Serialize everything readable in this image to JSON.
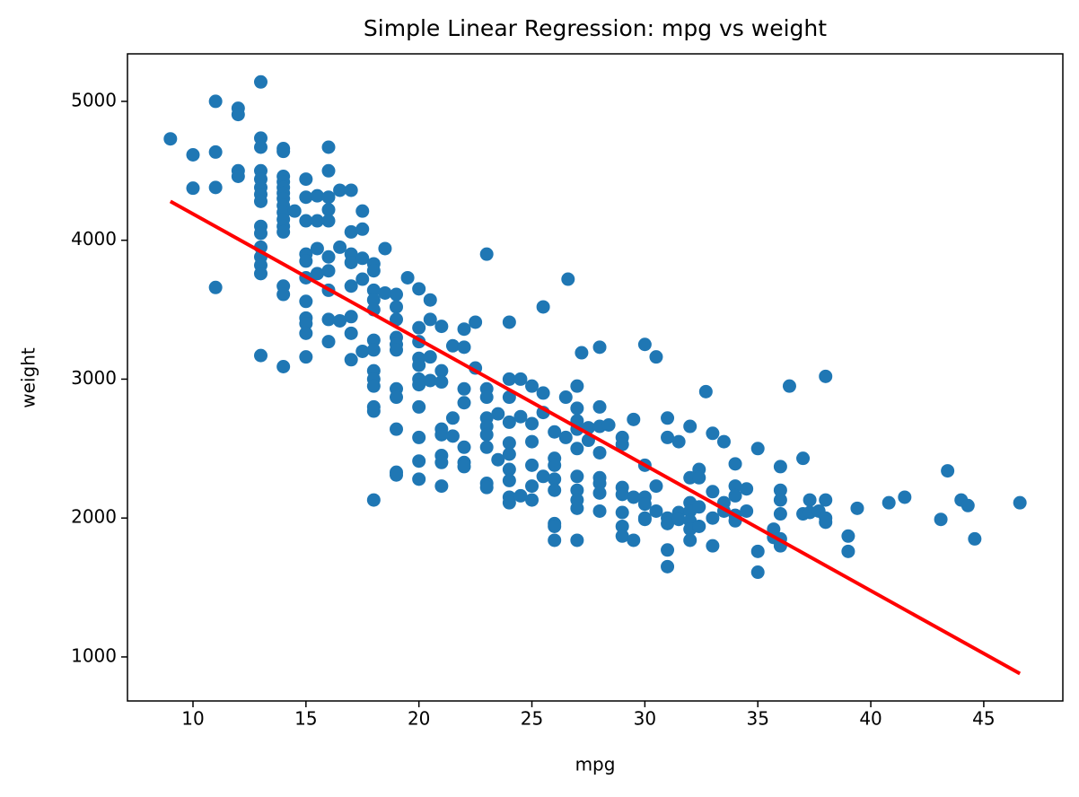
{
  "chart_data": {
    "type": "scatter",
    "title": "Simple Linear Regression: mpg vs weight",
    "x_label": "mpg",
    "y_label": "weight",
    "xlim": [
      7.1,
      48.5
    ],
    "ylim": [
      683,
      5342
    ],
    "xticks": [
      10,
      15,
      20,
      25,
      30,
      35,
      40,
      45
    ],
    "yticks": [
      1000,
      2000,
      3000,
      4000,
      5000
    ],
    "grid": false,
    "series": [
      {
        "type": "scatter",
        "color": "#1f77b4",
        "x": [
          9,
          10,
          10,
          11,
          11,
          11,
          11,
          12,
          12,
          12,
          12,
          13,
          13,
          13,
          13,
          13,
          13,
          13,
          13,
          13,
          13,
          13,
          13,
          13,
          13,
          13,
          14,
          14,
          14,
          14,
          14,
          14,
          14,
          14,
          14,
          14,
          14,
          14,
          14,
          14,
          14,
          14.5,
          15,
          15,
          15,
          15,
          15,
          15,
          15,
          15,
          15,
          15,
          15,
          15.5,
          15.5,
          15.5,
          15.5,
          16,
          16,
          16,
          16,
          16,
          16,
          16,
          16,
          16,
          16,
          16.5,
          16.5,
          16.5,
          17,
          17,
          17,
          17,
          17,
          17,
          17,
          17,
          17.5,
          17.5,
          17.5,
          17.5,
          17.5,
          18,
          18,
          18,
          18,
          18,
          18,
          18,
          18,
          18,
          18,
          18,
          18,
          18,
          18.5,
          18.5,
          19,
          19,
          19,
          19,
          19,
          19,
          19,
          19,
          19,
          19,
          19,
          19.5,
          20,
          20,
          20,
          20,
          20,
          20,
          20,
          20,
          20,
          20,
          20,
          20.5,
          20.5,
          20.5,
          20.5,
          21,
          21,
          21,
          21,
          21,
          21,
          21,
          21,
          21.5,
          21.5,
          21.5,
          22,
          22,
          22,
          22,
          22,
          22,
          22,
          22.5,
          22.5,
          23,
          23,
          23,
          23,
          23,
          23,
          23,
          23,
          23,
          23.5,
          23.5,
          24,
          24,
          24,
          24,
          24,
          24,
          24,
          24,
          24,
          24,
          24.5,
          24.5,
          24.5,
          25,
          25,
          25,
          25,
          25,
          25,
          25.5,
          25.5,
          25.5,
          25.5,
          26,
          26,
          26,
          26,
          26,
          26,
          26,
          26,
          26.5,
          26.5,
          26.6,
          27,
          27,
          27,
          27,
          27,
          27,
          27,
          27,
          27,
          27,
          27.2,
          27.5,
          27.5,
          28,
          28,
          28,
          28,
          28,
          28,
          28,
          28,
          28.4,
          29,
          29,
          29,
          29,
          29,
          29,
          29,
          29.5,
          29.5,
          29.5,
          30,
          30,
          30,
          30,
          30,
          30,
          30.5,
          30.5,
          30.5,
          31,
          31,
          31,
          31,
          31,
          31,
          31.5,
          31.5,
          31.5,
          32,
          32,
          32,
          32,
          32,
          32,
          32,
          32.4,
          32.4,
          32.4,
          32.4,
          32.7,
          33,
          33,
          33,
          33,
          33.5,
          33.5,
          33.5,
          34,
          34,
          34,
          34,
          34,
          34.5,
          34.5,
          35,
          35,
          35,
          35.7,
          35.7,
          36,
          36,
          36,
          36,
          36,
          36,
          36.4,
          37,
          37,
          37.3,
          37.3,
          37.7,
          38,
          38,
          38,
          38,
          39,
          39,
          39.4,
          40.8,
          41.5,
          43.1,
          43.4,
          44,
          44.3,
          44.6,
          46.6
        ],
        "values": [
          4730,
          4615,
          4375,
          5000,
          4635,
          4380,
          3660,
          4950,
          4905,
          4500,
          4460,
          5140,
          4735,
          4670,
          4500,
          4440,
          4380,
          4330,
          4280,
          4100,
          4050,
          3950,
          3880,
          3820,
          3760,
          3170,
          4660,
          4640,
          4460,
          4420,
          4380,
          4340,
          4300,
          4250,
          4200,
          4150,
          4100,
          4060,
          3670,
          3610,
          3090,
          4210,
          4440,
          4310,
          4140,
          3900,
          3850,
          3730,
          3560,
          3440,
          3400,
          3330,
          3160,
          4320,
          4140,
          3940,
          3760,
          4670,
          4500,
          4310,
          4220,
          4140,
          3880,
          3780,
          3640,
          3430,
          3270,
          4360,
          3950,
          3420,
          4360,
          4060,
          3900,
          3840,
          3670,
          3450,
          3330,
          3140,
          4210,
          4080,
          3870,
          3720,
          3200,
          3830,
          3780,
          3640,
          3570,
          3500,
          3280,
          3210,
          3060,
          3000,
          2950,
          2800,
          2770,
          2130,
          3940,
          3620,
          3610,
          3520,
          3430,
          3300,
          3250,
          3210,
          2930,
          2870,
          2640,
          2330,
          2310,
          3730,
          3650,
          3370,
          3270,
          3150,
          3100,
          3000,
          2960,
          2800,
          2580,
          2410,
          2280,
          3570,
          3430,
          3160,
          2990,
          3380,
          3060,
          2980,
          2640,
          2600,
          2450,
          2400,
          2230,
          3240,
          2720,
          2590,
          3230,
          3360,
          2930,
          2830,
          2510,
          2400,
          2370,
          3410,
          3080,
          3900,
          2930,
          2870,
          2720,
          2660,
          2600,
          2510,
          2250,
          2220,
          2750,
          2420,
          3410,
          3000,
          2870,
          2690,
          2540,
          2460,
          2350,
          2270,
          2150,
          2110,
          3000,
          2730,
          2160,
          2950,
          2680,
          2550,
          2380,
          2230,
          2130,
          3520,
          2900,
          2760,
          2300,
          2620,
          2430,
          2380,
          2280,
          2200,
          1960,
          1940,
          1840,
          2870,
          2580,
          3720,
          2950,
          2790,
          2700,
          2640,
          2500,
          2300,
          2200,
          2130,
          2070,
          1840,
          3190,
          2650,
          2560,
          3230,
          2800,
          2660,
          2470,
          2290,
          2250,
          2180,
          2050,
          2670,
          2580,
          2530,
          2220,
          2170,
          2040,
          1940,
          1870,
          2710,
          2150,
          1840,
          3250,
          2380,
          2150,
          2100,
          2000,
          1990,
          3160,
          2230,
          2050,
          2720,
          2580,
          2000,
          1960,
          1770,
          1650,
          2550,
          2040,
          1990,
          2660,
          2290,
          2110,
          2050,
          1980,
          1920,
          1840,
          2350,
          2290,
          2080,
          1940,
          2910,
          2610,
          2190,
          2000,
          1800,
          2550,
          2110,
          2050,
          2390,
          2230,
          2160,
          2020,
          1980,
          2210,
          2050,
          2500,
          1760,
          1610,
          1920,
          1860,
          2370,
          2200,
          2130,
          2030,
          1850,
          1800,
          2950,
          2430,
          2030,
          2130,
          2040,
          2050,
          3020,
          2130,
          2000,
          1970,
          1870,
          1760,
          2070,
          2110,
          2150,
          1990,
          2340,
          2130,
          2090,
          1850,
          2110
        ]
      },
      {
        "type": "line",
        "color": "#ff0000",
        "x": [
          9,
          46.6
        ],
        "values": [
          4280,
          880
        ]
      }
    ]
  }
}
